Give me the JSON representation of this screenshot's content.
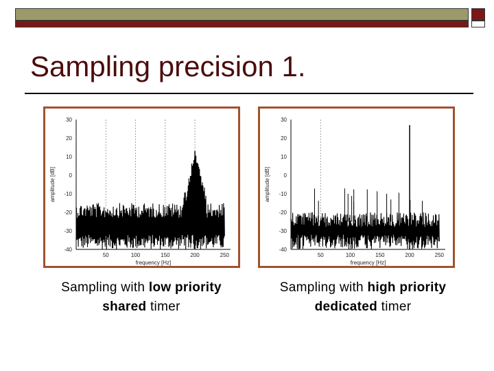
{
  "header": {
    "decor_colors": {
      "olive": "#9c9a6a",
      "dark_red": "#7a1818"
    }
  },
  "title": "Sampling precision 1.",
  "chart_data": [
    {
      "type": "line",
      "xlabel": "frequency [Hz]",
      "ylabel": "amplitude [dB]",
      "xlim": [
        0,
        260
      ],
      "ylim": [
        -40,
        30
      ],
      "xticks": [
        50,
        100,
        150,
        200,
        250
      ],
      "yticks": [
        30,
        20,
        10,
        0,
        -10,
        -20,
        -30,
        -40
      ],
      "gridlines_x": [
        50,
        100,
        150,
        200
      ],
      "noise_band": {
        "x_start": 0,
        "x_end": 250,
        "low": -40,
        "high": -15
      },
      "peaks": [
        {
          "x": 200,
          "y": 13
        }
      ]
    },
    {
      "type": "line",
      "xlabel": "frequency [Hz]",
      "ylabel": "amplitude [dB]",
      "xlim": [
        0,
        260
      ],
      "ylim": [
        -40,
        30
      ],
      "xticks": [
        50,
        100,
        150,
        200,
        250
      ],
      "yticks": [
        30,
        20,
        10,
        0,
        -10,
        -20,
        -30,
        -40
      ],
      "gridlines_x": [
        50
      ],
      "noise_band": {
        "x_start": 0,
        "x_end": 250,
        "low": -40,
        "high": -20
      },
      "peaks": [
        {
          "x": 200,
          "y": 27
        }
      ]
    }
  ],
  "captions": {
    "left": {
      "prefix": "Sampling with ",
      "bold1": "low priority",
      "bold2": "shared",
      "suffix": " timer"
    },
    "right": {
      "prefix": "Sampling with ",
      "bold1": "high priority",
      "bold2": "dedicated",
      "suffix": " timer"
    }
  }
}
